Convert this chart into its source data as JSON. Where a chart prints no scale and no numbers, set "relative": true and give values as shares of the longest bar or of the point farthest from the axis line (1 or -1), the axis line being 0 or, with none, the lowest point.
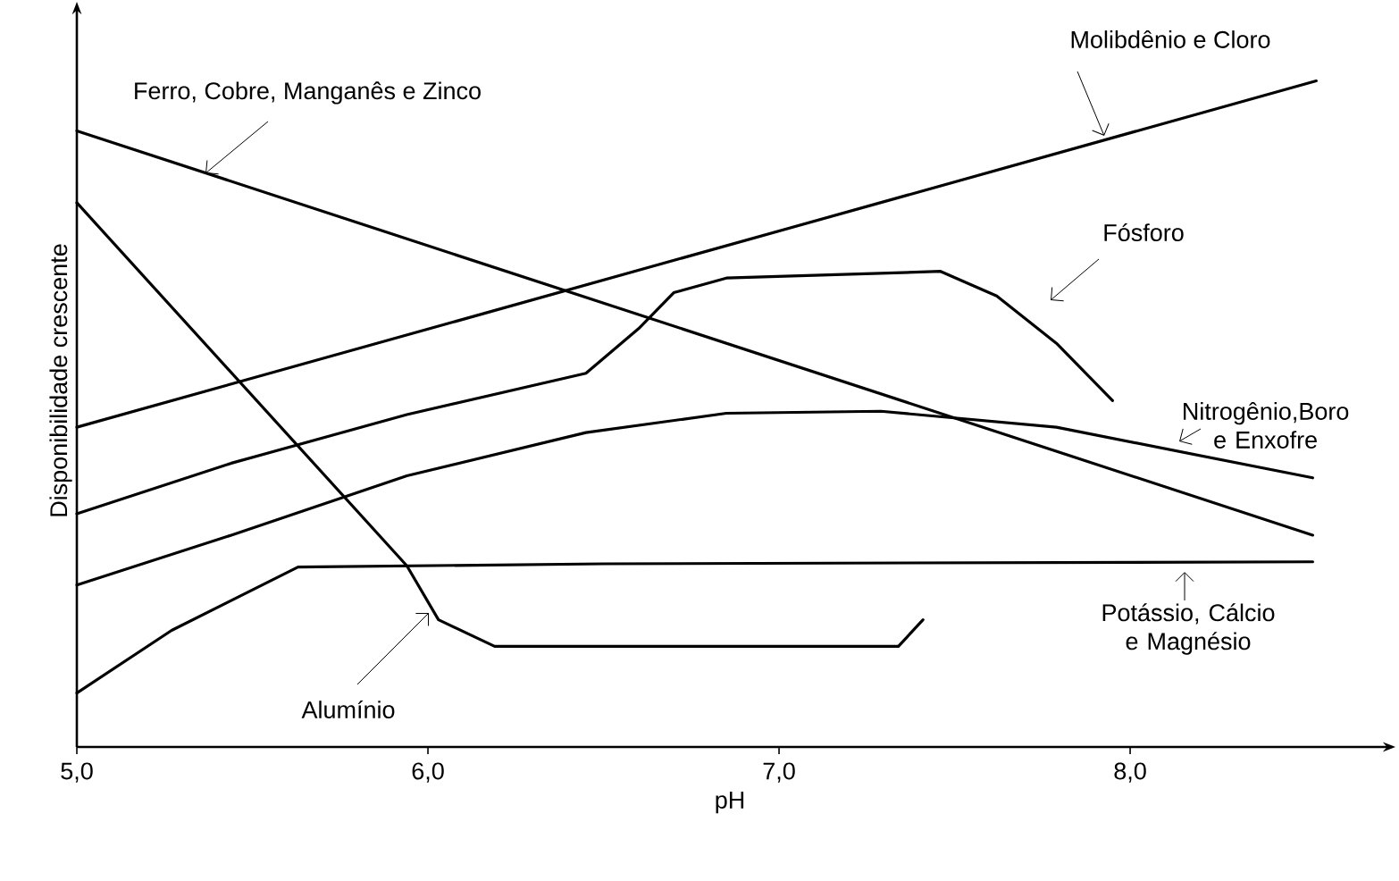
{
  "chart_data": {
    "type": "line",
    "relative": true,
    "xlabel": "pH",
    "ylabel": "Disponibilidade crescente",
    "xlim": [
      5,
      8.72
    ],
    "xticks": [
      {
        "value": 5,
        "label": "5,0"
      },
      {
        "value": 6,
        "label": "6,0"
      },
      {
        "value": 7,
        "label": "7,0"
      },
      {
        "value": 8,
        "label": "8,0"
      }
    ],
    "series": [
      {
        "name": "Ferro, Cobre, Manganês e Zinco",
        "color": "#000000",
        "x": [
          5,
          8.52
        ],
        "values": [
          0.925,
          0.318
        ]
      },
      {
        "name": "Molibdênio e Cloro",
        "color": "#000000",
        "x": [
          5,
          8.53
        ],
        "values": [
          0.48,
          1
        ]
      },
      {
        "name": "Fósforo",
        "color": "#000000",
        "x": [
          5,
          5.44,
          5.94,
          6.45,
          6.6,
          6.7,
          6.85,
          7.46,
          7.62,
          7.79,
          7.95
        ],
        "values": [
          0.35,
          0.426,
          0.499,
          0.561,
          0.628,
          0.682,
          0.704,
          0.714,
          0.677,
          0.606,
          0.52
        ]
      },
      {
        "name": "Nitrogênio,Boro e Enxofre",
        "color": "#000000",
        "x": [
          5,
          5.44,
          5.94,
          6.45,
          6.85,
          7.29,
          7.79,
          8.52
        ],
        "values": [
          0.243,
          0.318,
          0.407,
          0.472,
          0.501,
          0.504,
          0.48,
          0.404
        ]
      },
      {
        "name": "Potássio, Cálcio e Magnésio",
        "color": "#000000",
        "x": [
          5,
          5.27,
          5.63,
          6.5,
          8.52
        ],
        "values": [
          0.081,
          0.175,
          0.27,
          0.275,
          0.278
        ]
      },
      {
        "name": "Alumínio",
        "color": "#000000",
        "x": [
          5,
          5.94,
          6.03,
          6.19,
          7.34,
          7.41
        ],
        "values": [
          0.817,
          0.272,
          0.191,
          0.151,
          0.151,
          0.191
        ]
      }
    ]
  }
}
